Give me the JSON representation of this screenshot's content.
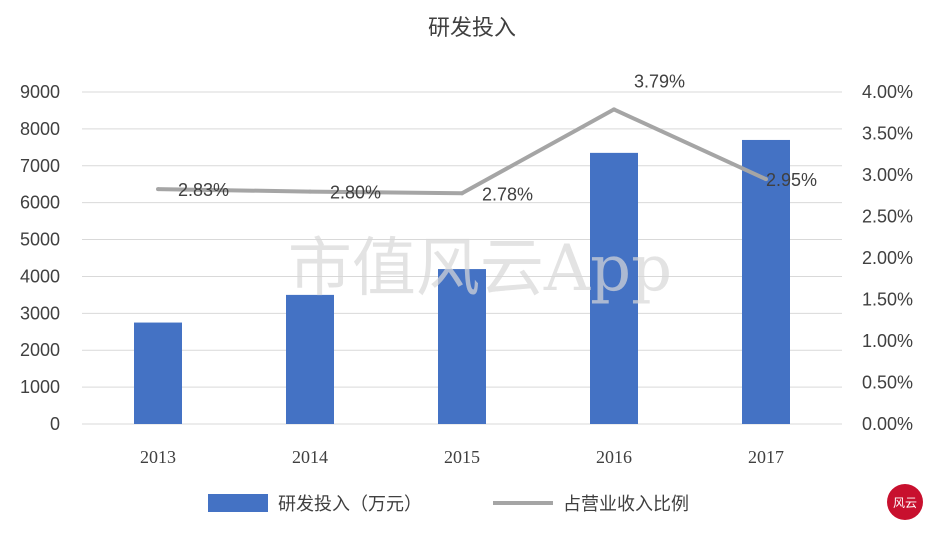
{
  "chart_data": {
    "type": "bar",
    "title": "研发投入",
    "categories": [
      "2013",
      "2014",
      "2015",
      "2016",
      "2017"
    ],
    "series": [
      {
        "name": "研发投入（万元）",
        "type": "bar",
        "axis": "left",
        "color": "#4472C4",
        "values": [
          2750,
          3500,
          4200,
          7350,
          7700
        ]
      },
      {
        "name": "占营业收入比例",
        "type": "line",
        "axis": "right",
        "color": "#A5A5A5",
        "values": [
          2.83,
          2.8,
          2.78,
          3.79,
          2.95
        ],
        "labels": [
          "2.83%",
          "2.80%",
          "2.78%",
          "3.79%",
          "2.95%"
        ]
      }
    ],
    "y_left": {
      "min": 0,
      "max": 9000,
      "step": 1000,
      "ticks": [
        "0",
        "1000",
        "2000",
        "3000",
        "4000",
        "5000",
        "6000",
        "7000",
        "8000",
        "9000"
      ]
    },
    "y_right": {
      "min": 0,
      "max": 4,
      "step": 0.5,
      "ticks": [
        "0.00%",
        "0.50%",
        "1.00%",
        "1.50%",
        "2.00%",
        "2.50%",
        "3.00%",
        "3.50%",
        "4.00%"
      ]
    },
    "grid": true,
    "legend_position": "bottom"
  },
  "watermark": "市值风云App",
  "logo": {
    "text": "风云",
    "color": "#C8102E"
  }
}
